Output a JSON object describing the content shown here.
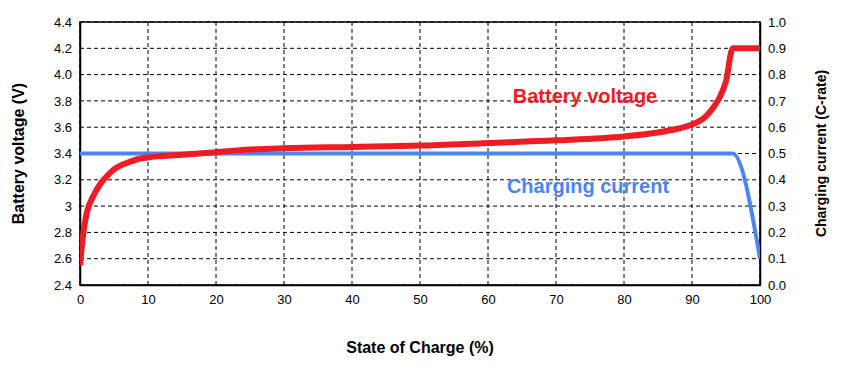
{
  "chart_data": {
    "type": "line",
    "x_label": "State of Charge (%)",
    "y_label": "Battery voltage (V)",
    "y2_label": "Charging current (C-rate)",
    "x": [
      0,
      0.5,
      1,
      2,
      3,
      4,
      5,
      6,
      7,
      8,
      10,
      15,
      20,
      25,
      30,
      40,
      50,
      60,
      70,
      80,
      85,
      88,
      90,
      92,
      93,
      94,
      95,
      96,
      100
    ],
    "series": [
      {
        "name": "Battery voltage",
        "color": "#ee1c25",
        "values": [
          2.55,
          2.8,
          2.95,
          3.08,
          3.17,
          3.23,
          3.28,
          3.31,
          3.33,
          3.35,
          3.37,
          3.39,
          3.41,
          3.43,
          3.44,
          3.45,
          3.46,
          3.48,
          3.5,
          3.53,
          3.56,
          3.59,
          3.62,
          3.68,
          3.74,
          3.82,
          3.95,
          4.2,
          4.2
        ]
      },
      {
        "name": "Charging current",
        "color": "#4a86f0",
        "axis": "y2",
        "values": [
          0.5,
          0.5,
          0.5,
          0.5,
          0.5,
          0.5,
          0.5,
          0.5,
          0.5,
          0.5,
          0.5,
          0.5,
          0.5,
          0.5,
          0.5,
          0.5,
          0.5,
          0.5,
          0.5,
          0.5,
          0.5,
          0.5,
          0.5,
          0.5,
          0.5,
          0.5,
          0.5,
          0.5,
          0.1
        ]
      }
    ],
    "xlim": [
      0,
      100
    ],
    "xticks": [
      0,
      10,
      20,
      30,
      40,
      50,
      60,
      70,
      80,
      90,
      100
    ],
    "ylim": [
      2.4,
      4.4
    ],
    "yticks": [
      2.4,
      2.6,
      2.8,
      3.0,
      3.2,
      3.4,
      3.6,
      3.8,
      {
        "value": 4,
        "label": "4.0"
      },
      4.2,
      4.4
    ],
    "y2lim": [
      0,
      1
    ],
    "y2ticks": [
      {
        "value": 0,
        "label": "0.0"
      },
      0.1,
      0.2,
      0.3,
      0.4,
      0.5,
      0.6,
      0.7,
      0.8,
      0.9,
      {
        "value": 1,
        "label": "1.0"
      }
    ],
    "grid": true
  }
}
